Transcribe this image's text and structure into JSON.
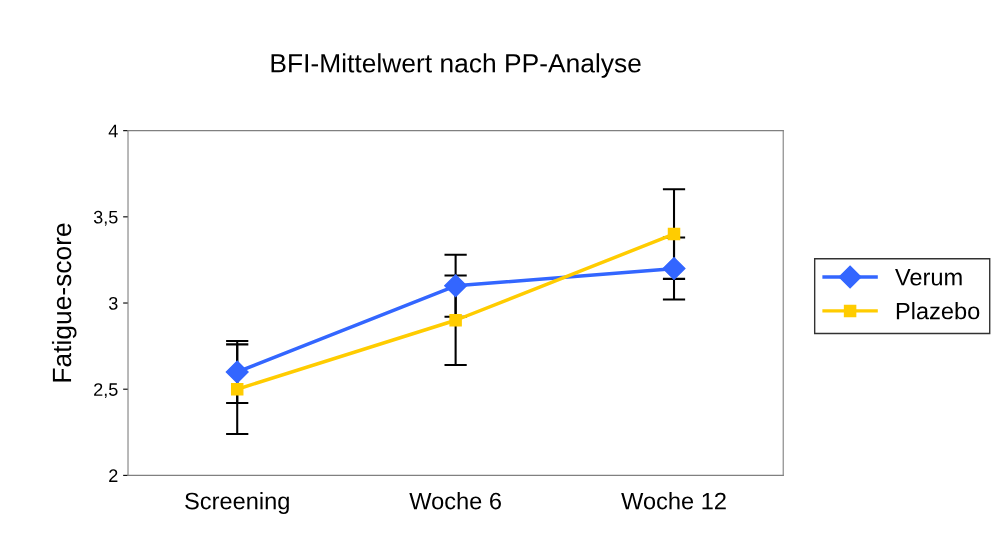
{
  "chart_data": {
    "type": "line",
    "title": "BFI-Mittelwert nach PP-Analyse",
    "ylabel": "Fatigue-score",
    "categories": [
      "Screening",
      "Woche 6",
      "Woche 12"
    ],
    "series": [
      {
        "name": "Verum",
        "color": "#3366ff",
        "marker": "diamond",
        "values": [
          2.6,
          3.1,
          3.2
        ],
        "errors": [
          0.18,
          0.18,
          0.18
        ]
      },
      {
        "name": "Plazebo",
        "color": "#ffcc00",
        "marker": "square",
        "values": [
          2.5,
          2.9,
          3.4
        ],
        "errors": [
          0.26,
          0.26,
          0.26
        ]
      }
    ],
    "ylim": [
      2,
      4
    ],
    "yticks": [
      {
        "value": 2,
        "label": "2"
      },
      {
        "value": 2.5,
        "label": "2,5"
      },
      {
        "value": 3,
        "label": "3"
      },
      {
        "value": 3.5,
        "label": "3,5"
      },
      {
        "value": 4,
        "label": "4"
      }
    ],
    "grid": false,
    "legend": "right",
    "line_style": "solid"
  }
}
